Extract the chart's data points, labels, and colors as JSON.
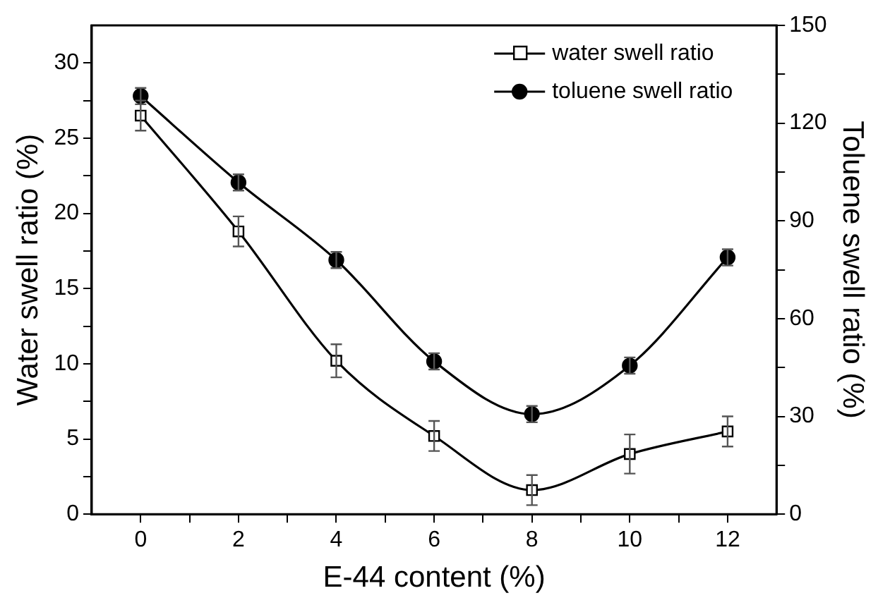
{
  "chart_data": {
    "type": "line",
    "xlabel": "E-44 content (%)",
    "ylabel": "Water swell ratio (%)",
    "y2label": "Toluene swell ratio (%)",
    "x": [
      0,
      2,
      4,
      6,
      8,
      10,
      12
    ],
    "xlim": [
      -1,
      13
    ],
    "xticks": [
      0,
      {
        "value": 1,
        "label": null
      },
      2,
      {
        "value": 3,
        "label": null
      },
      4,
      {
        "value": 5,
        "label": null
      },
      6,
      {
        "value": 7,
        "label": null
      },
      8,
      {
        "value": 9,
        "label": null
      },
      10,
      {
        "value": 11,
        "label": null
      },
      12
    ],
    "ylim": [
      0,
      32.5
    ],
    "yticks": [
      0,
      {
        "value": 2.5,
        "label": null
      },
      5,
      {
        "value": 7.5,
        "label": null
      },
      10,
      {
        "value": 12.5,
        "label": null
      },
      15,
      {
        "value": 17.5,
        "label": null
      },
      20,
      {
        "value": 22.5,
        "label": null
      },
      25,
      {
        "value": 27.5,
        "label": null
      },
      30
    ],
    "y2lim": [
      0,
      150
    ],
    "y2ticks": [
      0,
      {
        "value": 15,
        "label": null
      },
      30,
      {
        "value": 45,
        "label": null
      },
      60,
      {
        "value": 75,
        "label": null
      },
      90,
      {
        "value": 105,
        "label": null
      },
      120,
      {
        "value": 135,
        "label": null
      },
      150
    ],
    "series": [
      {
        "name": "water swell ratio",
        "color": "#000000",
        "marker": "square",
        "values": [
          26.5,
          18.8,
          10.2,
          5.2,
          1.6,
          4.0,
          5.5
        ],
        "errors": [
          1,
          1,
          1.1,
          1,
          1,
          1.3,
          1
        ]
      },
      {
        "name": "toluene swell ratio",
        "color": "#000000",
        "marker": "circle",
        "axis": "y2",
        "values": [
          128.3,
          101.8,
          78,
          46.9,
          30.7,
          45.6,
          78.8
        ],
        "errors": [
          2.5,
          2.5,
          2.5,
          2.5,
          2.5,
          2.5,
          2.5
        ]
      }
    ],
    "grid": false,
    "legend": "top right",
    "line_style": "solid"
  }
}
